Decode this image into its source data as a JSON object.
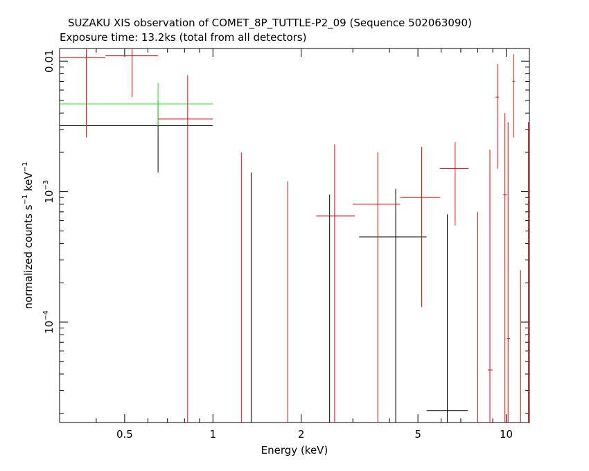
{
  "chart_data": {
    "type": "scatter",
    "title": "SUZAKU XIS observation of COMET_8P_TUTTLE-P2_09 (Sequence 502063090)",
    "subtitle": "Exposure time: 13.2ks (total from all detectors)",
    "xlabel": "Energy (keV)",
    "ylabel_main": "normalized counts s",
    "ylabel_sup1": "−1",
    "ylabel_mid": " keV",
    "ylabel_sup2": "−1",
    "x_scale": "log",
    "y_scale": "log",
    "xlim": [
      0.3,
      12.0
    ],
    "ylim": [
      1.7e-05,
      0.0125
    ],
    "x_ticks": [
      {
        "value": 0.5,
        "label": "0.5"
      },
      {
        "value": 1,
        "label": "1"
      },
      {
        "value": 2,
        "label": "2"
      },
      {
        "value": 5,
        "label": "5"
      },
      {
        "value": 10,
        "label": "10"
      }
    ],
    "y_ticks": [
      {
        "value": 0.01,
        "base": "0.01",
        "exp": ""
      },
      {
        "value": 0.001,
        "base": "10",
        "exp": "−3"
      },
      {
        "value": 0.0001,
        "base": "10",
        "exp": "−4"
      }
    ],
    "series": [
      {
        "color": "#000000",
        "points": [
          {
            "x": 0.65,
            "xlo": 0.3,
            "xhi": 1.0,
            "y": 0.0032,
            "ylo": 0.0014,
            "yhi": 0.005
          },
          {
            "x": 1.35,
            "y": 1.5e-05,
            "ylo": 1.5e-05,
            "yhi": 0.0014
          },
          {
            "x": 2.5,
            "y": 1.5e-05,
            "ylo": 1.5e-05,
            "yhi": 0.00095
          },
          {
            "x": 4.2,
            "xlo": 3.15,
            "xhi": 5.35,
            "y": 0.00045,
            "ylo": 1.5e-05,
            "yhi": 0.00105
          },
          {
            "x": 6.3,
            "xlo": 5.35,
            "xhi": 7.4,
            "y": 2.1e-05,
            "ylo": 1.5e-05,
            "yhi": 0.00067
          }
        ]
      },
      {
        "color": "#00ff00",
        "points": [
          {
            "x": 0.65,
            "xlo": 0.3,
            "xhi": 1.0,
            "y": 0.0047,
            "ylo": 0.0032,
            "yhi": 0.0068
          }
        ]
      },
      {
        "color": "#ff0000",
        "points": [
          {
            "x": 0.37,
            "xlo": 0.3,
            "xhi": 0.43,
            "y": 0.0106,
            "ylo": 0.0026,
            "yhi": 0.0125
          },
          {
            "x": 0.53,
            "xlo": 0.43,
            "xhi": 0.65,
            "y": 0.011,
            "ylo": 0.0053,
            "yhi": 0.0125
          },
          {
            "x": 0.82,
            "xlo": 0.65,
            "xhi": 1.0,
            "y": 0.0036,
            "ylo": 1.5e-05,
            "yhi": 0.0078
          },
          {
            "x": 1.25,
            "y": 1.5e-05,
            "ylo": 1.5e-05,
            "yhi": 0.002
          },
          {
            "x": 1.8,
            "y": 1.5e-05,
            "ylo": 1.5e-05,
            "yhi": 0.0012
          },
          {
            "x": 2.6,
            "xlo": 2.25,
            "xhi": 3.05,
            "y": 0.00065,
            "ylo": 1.5e-05,
            "yhi": 0.0023
          },
          {
            "x": 3.65,
            "xlo": 3.0,
            "xhi": 4.35,
            "y": 0.0008,
            "ylo": 1.5e-05,
            "yhi": 0.002
          },
          {
            "x": 5.15,
            "xlo": 4.35,
            "xhi": 5.95,
            "y": 0.0009,
            "ylo": 0.00013,
            "yhi": 0.0022
          },
          {
            "x": 6.7,
            "xlo": 5.95,
            "xhi": 7.45,
            "y": 0.0015,
            "ylo": 0.00055,
            "yhi": 0.0024
          },
          {
            "x": 8.0,
            "y": 1.5e-05,
            "ylo": 1.5e-05,
            "yhi": 0.0007
          },
          {
            "x": 8.8,
            "xlo": 8.65,
            "xhi": 9.0,
            "y": 4.3e-05,
            "ylo": 1.5e-05,
            "yhi": 0.0021
          },
          {
            "x": 9.35,
            "xlo": 9.2,
            "xhi": 9.45,
            "y": 0.0053,
            "ylo": 0.0015,
            "yhi": 0.0095
          },
          {
            "x": 9.9,
            "xlo": 9.75,
            "xhi": 10.05,
            "y": 0.00095,
            "ylo": 1.5e-05,
            "yhi": 0.004
          },
          {
            "x": 10.15,
            "xlo": 10.05,
            "xhi": 10.3,
            "y": 7.5e-05,
            "ylo": 1.5e-05,
            "yhi": 0.0034
          },
          {
            "x": 10.6,
            "xlo": 10.5,
            "xhi": 10.7,
            "y": 0.007,
            "ylo": 0.0026,
            "yhi": 0.0113
          },
          {
            "x": 11.2,
            "y": 1.5e-05,
            "ylo": 1.5e-05,
            "yhi": 0.00025
          },
          {
            "x": 11.9,
            "y": 1.5e-05,
            "ylo": 1.5e-05,
            "yhi": 0.0034
          }
        ]
      }
    ]
  }
}
